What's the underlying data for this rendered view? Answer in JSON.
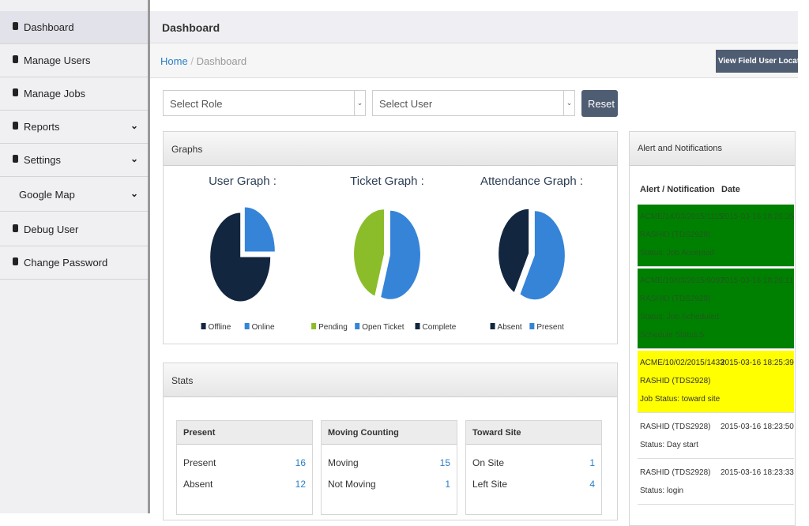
{
  "sidebar": {
    "items": [
      "Dashboard",
      "Manage Users",
      "Manage Jobs",
      "Reports",
      "Settings",
      "Google Map",
      "Debug User",
      "Change Password"
    ]
  },
  "header": {
    "title": "Dashboard"
  },
  "breadcrumb": {
    "items": [
      "Home",
      "Dashboard"
    ],
    "separator": "/"
  },
  "location_button": "View Field User Location",
  "filters": {
    "role": "Select Role",
    "user": "Select User",
    "reset": "Reset"
  },
  "graphs_panel": {
    "title": "Graphs"
  },
  "chart_data": [
    {
      "type": "pie",
      "title": "User Graph :",
      "categories": [
        "Offline",
        "Online"
      ],
      "values": [
        75,
        25
      ],
      "colors": [
        "#13263f",
        "#3584d8"
      ]
    },
    {
      "type": "pie",
      "title": "Ticket Graph :",
      "categories": [
        "Pending",
        "Open Ticket",
        "Complete"
      ],
      "values": [
        45,
        55,
        0
      ],
      "colors": [
        "#8bbd2b",
        "#3584d8",
        "#13263f"
      ]
    },
    {
      "type": "pie",
      "title": "Attendance Graph :",
      "categories": [
        "Absent",
        "Present"
      ],
      "values": [
        42,
        58
      ],
      "colors": [
        "#13263f",
        "#3584d8"
      ]
    }
  ],
  "stats": {
    "title": "Stats",
    "boxes": [
      {
        "title": "Present",
        "rows": [
          [
            "Present",
            16
          ],
          [
            "Absent",
            12
          ]
        ]
      },
      {
        "title": "Moving Counting",
        "rows": [
          [
            "Moving",
            15
          ],
          [
            "Not Moving",
            1
          ]
        ]
      },
      {
        "title": "Toward Site",
        "rows": [
          [
            "On Site",
            1
          ],
          [
            "Left Site",
            4
          ]
        ]
      }
    ]
  },
  "alerts": {
    "title": "Alert and Notifications",
    "columns": [
      "Alert / Notification",
      "Date"
    ],
    "rows": [
      {
        "lines": [
          "ACME/14/03/2015/1115",
          "RASHID (TDS2928)",
          "Status: Job Accepted"
        ],
        "date": "2015-03-16 18:26:35",
        "color": "#008000"
      },
      {
        "lines": [
          "ACME/10/03/2015/9097",
          "RASHID (TDS2928)",
          "Status: Job Scheduled",
          "Schedule Status:5"
        ],
        "date": "2015-03-16 18:26:11",
        "color": "#008000"
      },
      {
        "lines": [
          "ACME/10/02/2015/1433",
          "RASHID (TDS2928)",
          "Job Status: toward site"
        ],
        "date": "2015-03-16 18:25:39",
        "color": "#ffff00"
      },
      {
        "lines": [
          "RASHID (TDS2928)",
          "Status: Day start"
        ],
        "date": "2015-03-16 18:23:50",
        "color": "#ffffff"
      },
      {
        "lines": [
          "RASHID (TDS2928)",
          "Status: login"
        ],
        "date": "2015-03-16 18:23:33",
        "color": "#ffffff"
      }
    ]
  }
}
